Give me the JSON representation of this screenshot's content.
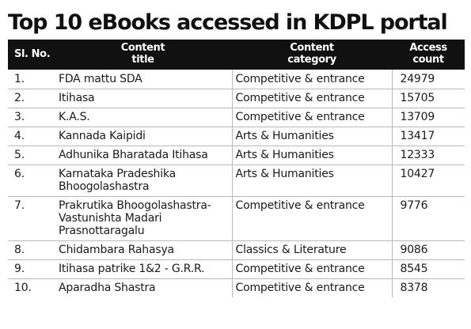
{
  "title": "Top 10 eBooks accessed in KDPL portal",
  "table": {
    "headers": {
      "sl": "Sl. No.",
      "content_title_1": "Content",
      "content_title_2": "title",
      "category_1": "Content",
      "category_2": "category",
      "access_1": "Access",
      "access_2": "count"
    },
    "rows": [
      {
        "sl": "1.",
        "title": "FDA mattu SDA",
        "category": "Competitive & entrance",
        "count": "24979"
      },
      {
        "sl": "2.",
        "title": "Itihasa",
        "category": "Competitive & entrance",
        "count": "15705"
      },
      {
        "sl": "3.",
        "title": "K.A.S.",
        "category": "Competitive & entrance",
        "count": "13709"
      },
      {
        "sl": "4.",
        "title": "Kannada Kaipidi",
        "category": "Arts & Humanities",
        "count": "13417"
      },
      {
        "sl": "5.",
        "title": "Adhunika Bharatada Itihasa",
        "category": "Arts & Humanities",
        "count": "12333"
      },
      {
        "sl": "6.",
        "title": "Karnataka Pradeshika Bhoogolashastra",
        "category": "Arts & Humanities",
        "count": "10427"
      },
      {
        "sl": "7.",
        "title": "Prakrutika Bhoogolashastra- Vastunishta Madari Prasnottaragalu",
        "category": "Competitive & entrance",
        "count": "9776"
      },
      {
        "sl": "8.",
        "title": "Chidambara Rahasya",
        "category": "Classics & Literature",
        "count": "9086"
      },
      {
        "sl": "9.",
        "title": "Itihasa patrike 1&2 - G.R.R.",
        "category": "Competitive & entrance",
        "count": "8545"
      },
      {
        "sl": "10.",
        "title": "Aparadha Shastra",
        "category": "Competitive & entrance",
        "count": "8378"
      }
    ]
  }
}
